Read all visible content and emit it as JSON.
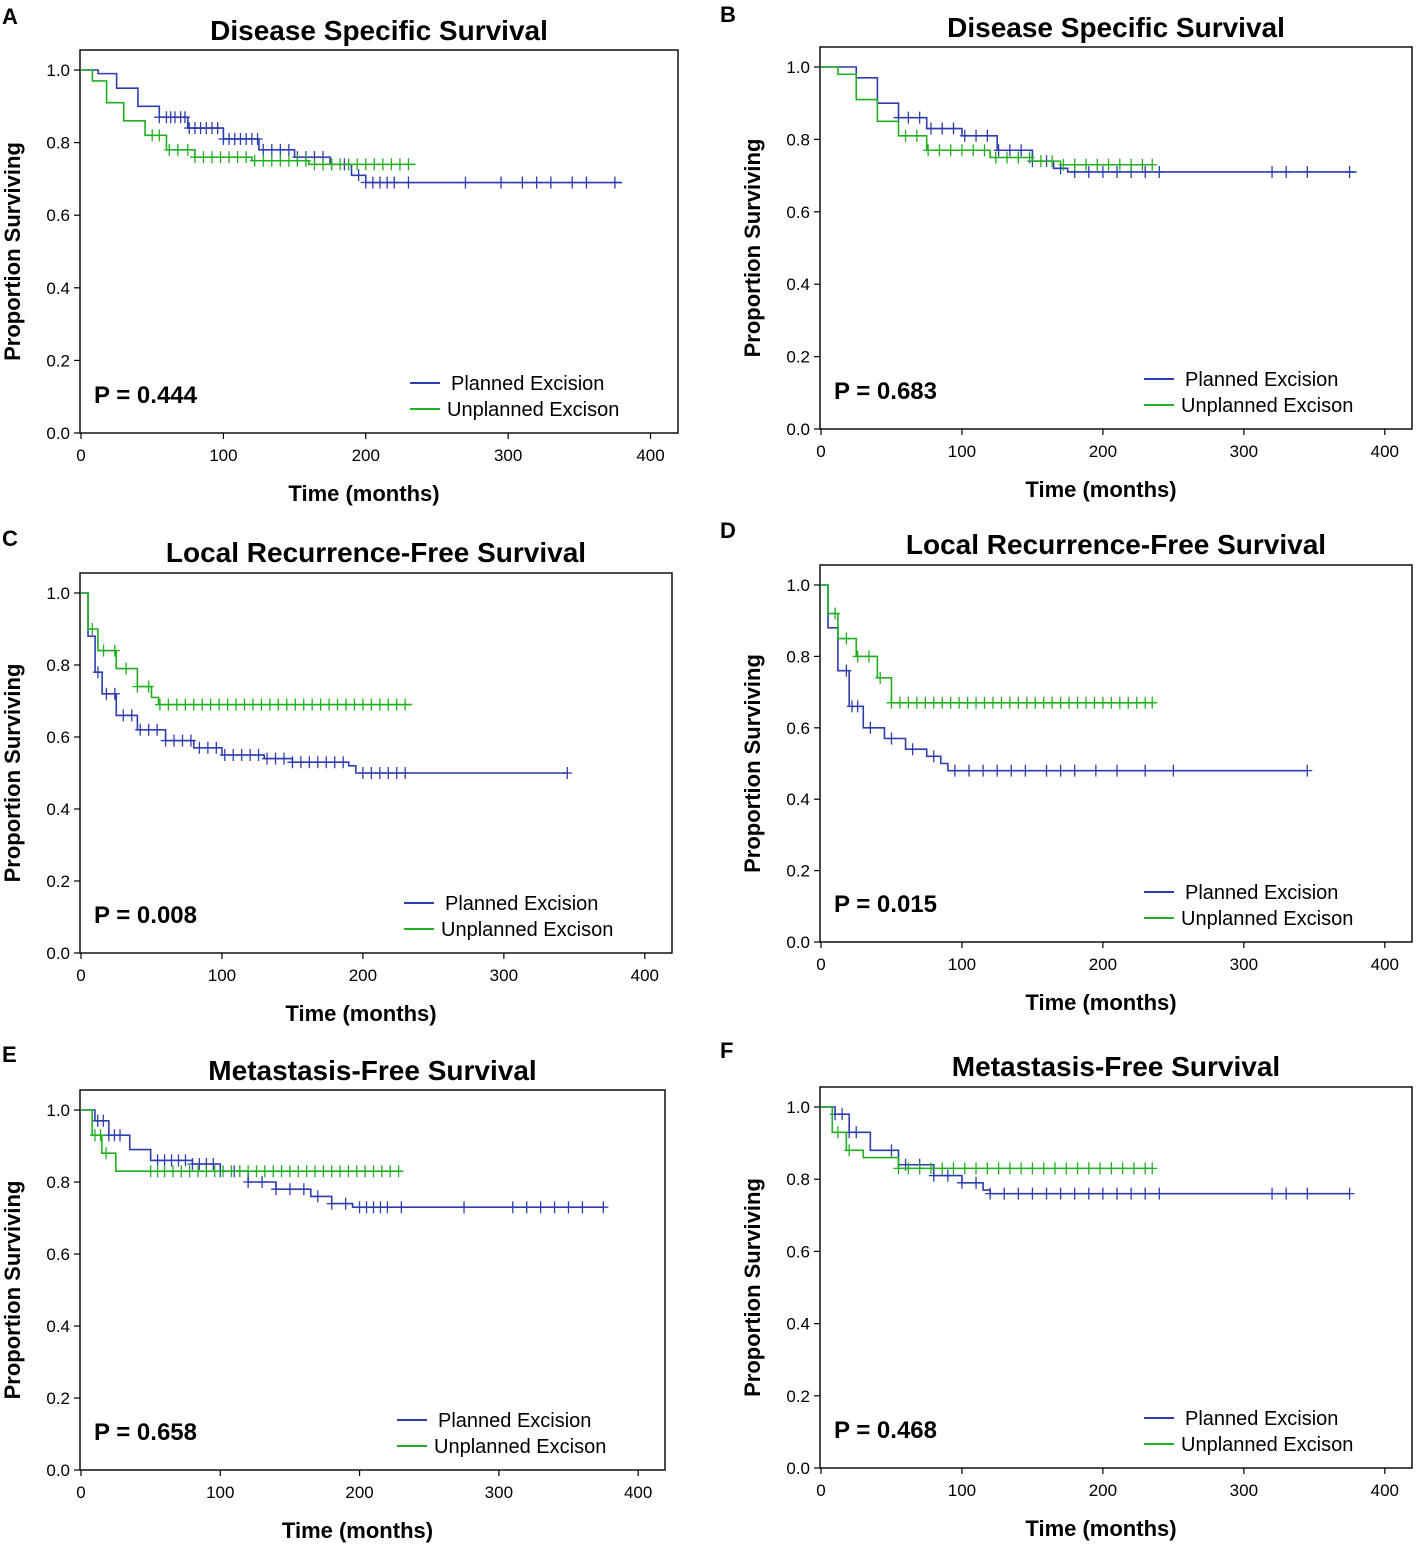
{
  "figure": {
    "panels": [
      "A",
      "B",
      "C",
      "D",
      "E",
      "F"
    ]
  },
  "colors": {
    "planned": "#2e3db0",
    "unplanned": "#22b022"
  },
  "chart_data": [
    {
      "panel": "A",
      "type": "line",
      "title": "Disease Specific Survival",
      "xlabel": "Time (months)",
      "ylabel": "Proportion Surviving",
      "xlim": [
        0,
        420
      ],
      "ylim": [
        0,
        1.0
      ],
      "xticks": [
        0,
        100,
        200,
        300,
        400
      ],
      "yticks": [
        "0.0",
        "0.2",
        "0.4",
        "0.6",
        "0.8",
        "1.0"
      ],
      "pvalue": "P = 0.444",
      "series": [
        {
          "name": "Planned Excision",
          "points": [
            [
              0,
              1.0
            ],
            [
              12,
              0.99
            ],
            [
              25,
              0.95
            ],
            [
              40,
              0.9
            ],
            [
              55,
              0.87
            ],
            [
              75,
              0.84
            ],
            [
              100,
              0.81
            ],
            [
              125,
              0.78
            ],
            [
              150,
              0.76
            ],
            [
              175,
              0.74
            ],
            [
              190,
              0.71
            ],
            [
              200,
              0.69
            ],
            [
              380,
              0.69
            ]
          ],
          "censored": [
            55,
            60,
            63,
            66,
            70,
            73,
            76,
            80,
            84,
            88,
            92,
            96,
            100,
            104,
            108,
            112,
            116,
            120,
            124,
            128,
            134,
            140,
            146,
            152,
            158,
            164,
            170,
            176,
            185,
            195,
            200,
            205,
            210,
            215,
            220,
            230,
            270,
            295,
            310,
            320,
            330,
            345,
            355,
            375
          ]
        },
        {
          "name": "Unplanned Excison",
          "points": [
            [
              0,
              1.0
            ],
            [
              8,
              0.97
            ],
            [
              18,
              0.91
            ],
            [
              30,
              0.86
            ],
            [
              45,
              0.82
            ],
            [
              60,
              0.78
            ],
            [
              80,
              0.76
            ],
            [
              120,
              0.75
            ],
            [
              160,
              0.74
            ],
            [
              235,
              0.74
            ]
          ],
          "censored": [
            50,
            55,
            62,
            68,
            75,
            80,
            86,
            92,
            98,
            104,
            110,
            116,
            122,
            128,
            134,
            140,
            146,
            152,
            158,
            164,
            170,
            176,
            182,
            188,
            194,
            200,
            206,
            212,
            218,
            224,
            230
          ]
        }
      ]
    },
    {
      "panel": "B",
      "type": "line",
      "title": "Disease Specific Survival",
      "xlabel": "Time (months)",
      "ylabel": "Proportion Surviving",
      "xlim": [
        0,
        420
      ],
      "ylim": [
        0,
        1.0
      ],
      "xticks": [
        0,
        100,
        200,
        300,
        400
      ],
      "yticks": [
        "0.0",
        "0.2",
        "0.4",
        "0.6",
        "0.8",
        "1.0"
      ],
      "pvalue": "P = 0.683",
      "series": [
        {
          "name": "Planned Excision",
          "points": [
            [
              0,
              1.0
            ],
            [
              12,
              1.0
            ],
            [
              25,
              0.97
            ],
            [
              40,
              0.9
            ],
            [
              55,
              0.86
            ],
            [
              75,
              0.83
            ],
            [
              100,
              0.81
            ],
            [
              125,
              0.77
            ],
            [
              150,
              0.74
            ],
            [
              165,
              0.72
            ],
            [
              175,
              0.71
            ],
            [
              380,
              0.71
            ]
          ],
          "censored": [
            55,
            62,
            70,
            78,
            86,
            94,
            102,
            110,
            118,
            126,
            134,
            142,
            150,
            160,
            170,
            180,
            190,
            200,
            210,
            220,
            230,
            240,
            320,
            330,
            345,
            375
          ]
        },
        {
          "name": "Unplanned Excison",
          "points": [
            [
              0,
              1.0
            ],
            [
              12,
              0.98
            ],
            [
              25,
              0.91
            ],
            [
              40,
              0.85
            ],
            [
              55,
              0.81
            ],
            [
              75,
              0.77
            ],
            [
              120,
              0.75
            ],
            [
              150,
              0.74
            ],
            [
              170,
              0.73
            ],
            [
              235,
              0.73
            ]
          ],
          "censored": [
            60,
            68,
            76,
            84,
            92,
            100,
            108,
            116,
            124,
            132,
            140,
            148,
            156,
            164,
            172,
            180,
            188,
            196,
            204,
            212,
            220,
            228,
            235
          ]
        }
      ]
    },
    {
      "panel": "C",
      "type": "line",
      "title": "Local Recurrence-Free Survival",
      "xlabel": "Time (months)",
      "ylabel": "Proportion Surviving",
      "xlim": [
        0,
        420
      ],
      "ylim": [
        0,
        1.0
      ],
      "xticks": [
        0,
        100,
        200,
        300,
        400
      ],
      "yticks": [
        "0.0",
        "0.2",
        "0.4",
        "0.6",
        "0.8",
        "1.0"
      ],
      "pvalue": "P = 0.008",
      "series": [
        {
          "name": "Planned Excision",
          "points": [
            [
              0,
              1.0
            ],
            [
              5,
              0.88
            ],
            [
              10,
              0.78
            ],
            [
              15,
              0.72
            ],
            [
              25,
              0.66
            ],
            [
              40,
              0.62
            ],
            [
              60,
              0.59
            ],
            [
              80,
              0.57
            ],
            [
              100,
              0.55
            ],
            [
              130,
              0.54
            ],
            [
              150,
              0.53
            ],
            [
              190,
              0.52
            ],
            [
              195,
              0.5
            ],
            [
              345,
              0.5
            ]
          ],
          "censored": [
            12,
            18,
            24,
            30,
            36,
            42,
            48,
            54,
            60,
            66,
            72,
            78,
            84,
            90,
            96,
            102,
            108,
            114,
            120,
            126,
            132,
            138,
            144,
            150,
            156,
            162,
            168,
            174,
            180,
            186,
            200,
            206,
            212,
            218,
            224,
            230,
            345
          ]
        },
        {
          "name": "Unplanned Excison",
          "points": [
            [
              0,
              1.0
            ],
            [
              5,
              0.9
            ],
            [
              12,
              0.84
            ],
            [
              25,
              0.79
            ],
            [
              40,
              0.74
            ],
            [
              50,
              0.71
            ],
            [
              55,
              0.69
            ],
            [
              235,
              0.69
            ]
          ],
          "censored": [
            8,
            16,
            24,
            32,
            40,
            48,
            56,
            62,
            68,
            74,
            80,
            86,
            92,
            98,
            104,
            110,
            116,
            122,
            128,
            134,
            140,
            146,
            152,
            158,
            164,
            170,
            176,
            182,
            188,
            194,
            200,
            206,
            212,
            218,
            224,
            230
          ]
        }
      ]
    },
    {
      "panel": "D",
      "type": "line",
      "title": "Local Recurrence-Free Survival",
      "xlabel": "Time (months)",
      "ylabel": "Proportion Surviving",
      "xlim": [
        0,
        420
      ],
      "ylim": [
        0,
        1.0
      ],
      "xticks": [
        0,
        100,
        200,
        300,
        400
      ],
      "yticks": [
        "0.0",
        "0.2",
        "0.4",
        "0.6",
        "0.8",
        "1.0"
      ],
      "pvalue": "P = 0.015",
      "series": [
        {
          "name": "Planned Excision",
          "points": [
            [
              0,
              1.0
            ],
            [
              5,
              0.88
            ],
            [
              12,
              0.76
            ],
            [
              20,
              0.66
            ],
            [
              30,
              0.6
            ],
            [
              45,
              0.57
            ],
            [
              60,
              0.54
            ],
            [
              75,
              0.52
            ],
            [
              85,
              0.5
            ],
            [
              90,
              0.48
            ],
            [
              345,
              0.48
            ]
          ],
          "censored": [
            18,
            22,
            26,
            35,
            50,
            65,
            80,
            95,
            105,
            115,
            125,
            135,
            145,
            160,
            170,
            180,
            195,
            210,
            230,
            250,
            345
          ]
        },
        {
          "name": "Unplanned Excison",
          "points": [
            [
              0,
              1.0
            ],
            [
              5,
              0.92
            ],
            [
              12,
              0.85
            ],
            [
              25,
              0.8
            ],
            [
              40,
              0.74
            ],
            [
              50,
              0.67
            ],
            [
              235,
              0.67
            ]
          ],
          "censored": [
            10,
            18,
            26,
            34,
            42,
            50,
            56,
            62,
            68,
            74,
            80,
            86,
            92,
            98,
            104,
            110,
            116,
            122,
            128,
            134,
            140,
            146,
            152,
            158,
            164,
            170,
            176,
            182,
            188,
            194,
            200,
            206,
            212,
            218,
            224,
            230,
            235
          ]
        }
      ]
    },
    {
      "panel": "E",
      "type": "line",
      "title": "Metastasis-Free Survival",
      "xlabel": "Time (months)",
      "ylabel": "Proportion Surviving",
      "xlim": [
        0,
        420
      ],
      "ylim": [
        0,
        1.0
      ],
      "xticks": [
        0,
        100,
        200,
        300,
        400
      ],
      "yticks": [
        "0.0",
        "0.2",
        "0.4",
        "0.6",
        "0.8",
        "1.0"
      ],
      "pvalue": "P = 0.658",
      "series": [
        {
          "name": "Planned Excision",
          "points": [
            [
              0,
              1.0
            ],
            [
              10,
              0.97
            ],
            [
              20,
              0.93
            ],
            [
              35,
              0.89
            ],
            [
              50,
              0.86
            ],
            [
              80,
              0.85
            ],
            [
              100,
              0.83
            ],
            [
              120,
              0.8
            ],
            [
              140,
              0.78
            ],
            [
              165,
              0.76
            ],
            [
              180,
              0.74
            ],
            [
              195,
              0.73
            ],
            [
              375,
              0.73
            ]
          ],
          "censored": [
            12,
            16,
            20,
            24,
            28,
            55,
            60,
            65,
            70,
            75,
            80,
            85,
            90,
            95,
            100,
            110,
            120,
            130,
            140,
            150,
            160,
            170,
            180,
            190,
            200,
            205,
            210,
            215,
            220,
            230,
            275,
            310,
            320,
            330,
            340,
            350,
            360,
            375
          ]
        },
        {
          "name": "Unplanned Excison",
          "points": [
            [
              0,
              1.0
            ],
            [
              8,
              0.93
            ],
            [
              15,
              0.88
            ],
            [
              25,
              0.83
            ],
            [
              230,
              0.83
            ]
          ],
          "censored": [
            10,
            14,
            18,
            50,
            55,
            60,
            66,
            72,
            78,
            84,
            90,
            96,
            102,
            108,
            114,
            120,
            126,
            132,
            138,
            144,
            150,
            156,
            162,
            168,
            174,
            180,
            186,
            192,
            198,
            204,
            210,
            216,
            222,
            228
          ]
        }
      ]
    },
    {
      "panel": "F",
      "type": "line",
      "title": "Metastasis-Free Survival",
      "xlabel": "Time (months)",
      "ylabel": "Proportion Surviving",
      "xlim": [
        0,
        420
      ],
      "ylim": [
        0,
        1.0
      ],
      "xticks": [
        0,
        100,
        200,
        300,
        400
      ],
      "yticks": [
        "0.0",
        "0.2",
        "0.4",
        "0.6",
        "0.8",
        "1.0"
      ],
      "pvalue": "P = 0.468",
      "series": [
        {
          "name": "Planned Excision",
          "points": [
            [
              0,
              1.0
            ],
            [
              10,
              0.98
            ],
            [
              20,
              0.93
            ],
            [
              35,
              0.88
            ],
            [
              55,
              0.84
            ],
            [
              80,
              0.81
            ],
            [
              100,
              0.79
            ],
            [
              115,
              0.77
            ],
            [
              120,
              0.76
            ],
            [
              375,
              0.76
            ]
          ],
          "censored": [
            10,
            15,
            20,
            25,
            50,
            60,
            70,
            80,
            90,
            100,
            110,
            120,
            130,
            140,
            150,
            160,
            170,
            180,
            190,
            200,
            210,
            220,
            230,
            240,
            320,
            330,
            345,
            375
          ]
        },
        {
          "name": "Unplanned Excison",
          "points": [
            [
              0,
              1.0
            ],
            [
              8,
              0.93
            ],
            [
              18,
              0.88
            ],
            [
              30,
              0.86
            ],
            [
              55,
              0.83
            ],
            [
              235,
              0.83
            ]
          ],
          "censored": [
            12,
            20,
            55,
            62,
            70,
            78,
            86,
            94,
            102,
            110,
            118,
            126,
            134,
            142,
            150,
            158,
            166,
            174,
            182,
            190,
            198,
            206,
            214,
            222,
            230,
            235
          ]
        }
      ]
    }
  ]
}
